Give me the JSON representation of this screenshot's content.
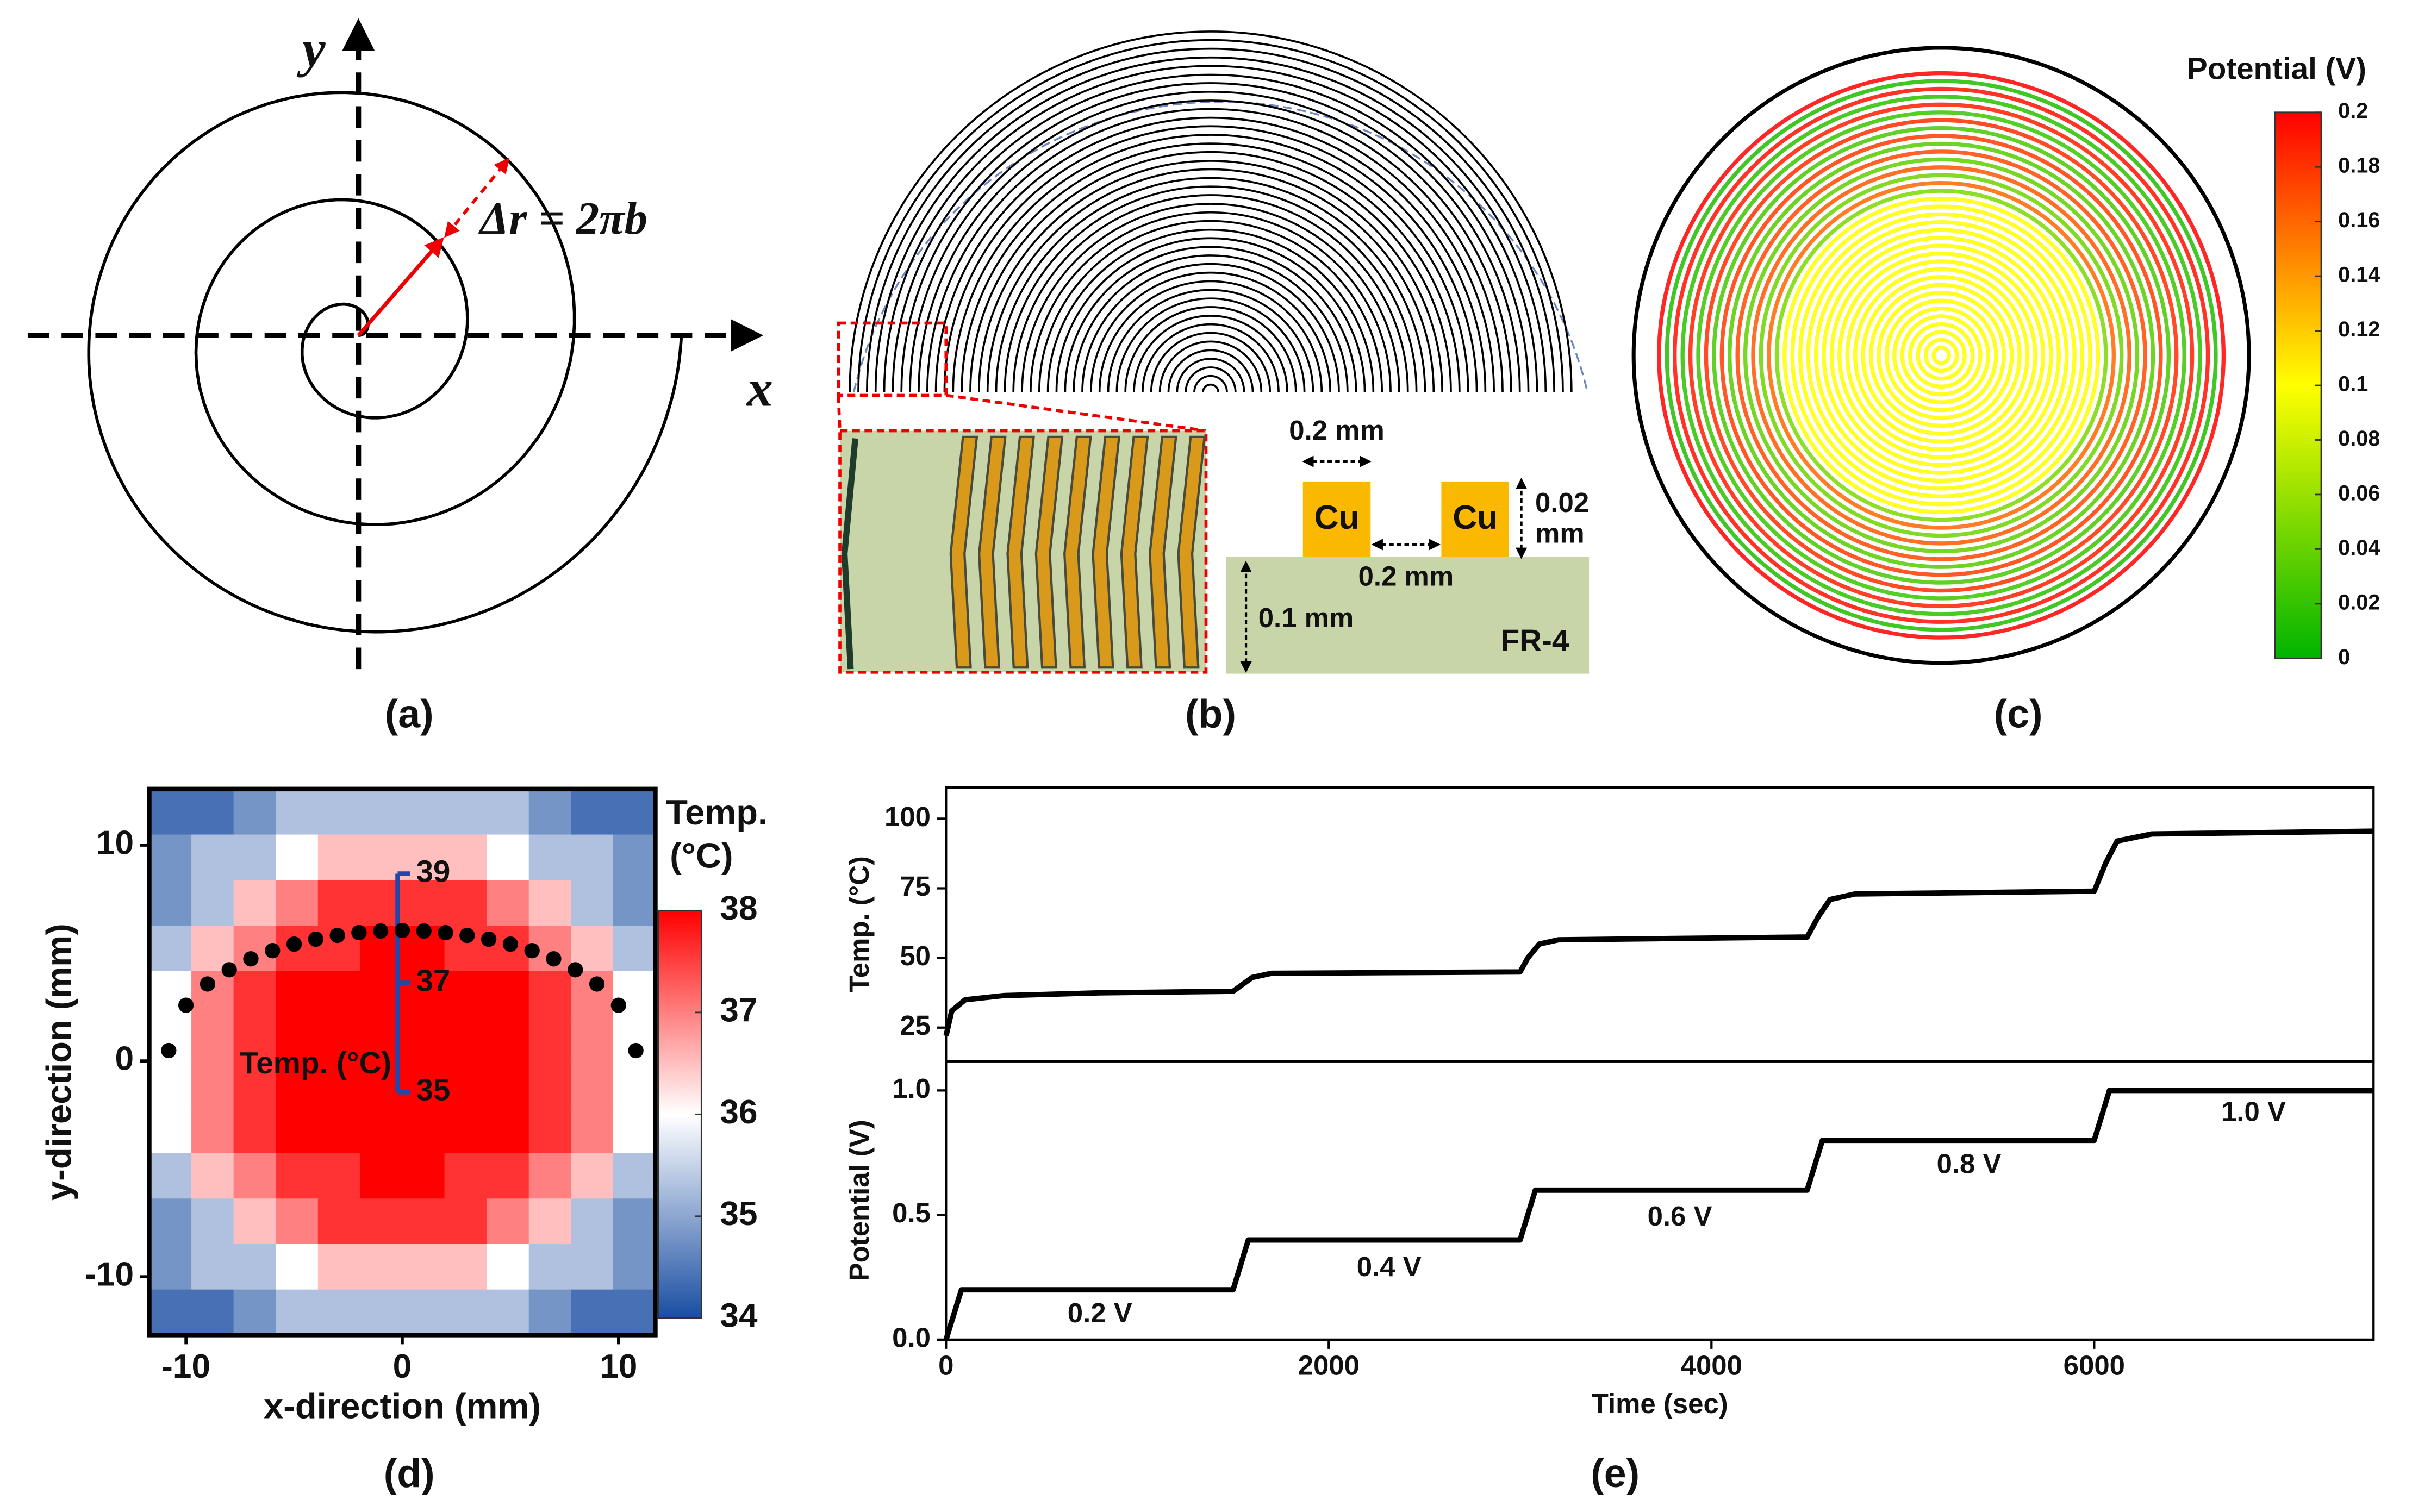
{
  "panel_labels": [
    "(a)",
    "(b)",
    "(c)",
    "(d)",
    "(e)"
  ],
  "spiral_diagram": {
    "x_label": "x",
    "y_label": "y",
    "annotation": "Δr = 2πb"
  },
  "cross_section": {
    "pitch": "0.2 mm",
    "conductor": [
      "Cu",
      "Cu"
    ],
    "height": [
      "0.02",
      "mm"
    ],
    "gap": "0.2 mm",
    "substrate_thickness": "0.1 mm",
    "substrate": "FR-4"
  },
  "potential_colorbar": {
    "title": "Potential (V)",
    "lim": [
      0,
      0.2
    ],
    "ticks": [
      0,
      0.02,
      0.04,
      0.06,
      0.08,
      0.1,
      0.12,
      0.14,
      0.16,
      0.18,
      0.2
    ],
    "colors": [
      "#00b400",
      "#ffff00",
      "#ff0000"
    ]
  },
  "chart_data": [
    {
      "type": "heatmap",
      "xlabel": "x-direction (mm)",
      "ylabel": "y-direction (mm)",
      "xlim": [
        -11.7,
        11.7
      ],
      "ylim": [
        -12.7,
        12.6
      ],
      "xticks": [
        -10,
        0,
        10
      ],
      "yticks": [
        -10,
        0,
        10
      ],
      "z": [
        [
          34.4,
          34.4,
          34.8,
          35.3,
          35.3,
          35.3,
          35.3,
          35.3,
          35.3,
          34.8,
          34.4,
          34.4
        ],
        [
          34.8,
          35.3,
          35.3,
          36,
          36.5,
          36.5,
          36.5,
          36.5,
          36,
          35.3,
          35.3,
          34.8
        ],
        [
          34.8,
          35.3,
          36.5,
          37,
          37.6,
          37.6,
          37.6,
          37.6,
          37,
          36.5,
          35.3,
          34.8
        ],
        [
          35.3,
          36.5,
          37,
          37.6,
          37.6,
          38,
          38,
          37.6,
          37.6,
          37,
          36.5,
          35.3
        ],
        [
          36,
          37,
          37.6,
          38,
          38,
          38,
          38,
          38,
          38,
          37.6,
          37,
          36
        ],
        [
          36,
          37,
          37.6,
          38,
          38,
          38,
          38,
          38,
          38,
          37.6,
          37,
          36
        ],
        [
          36,
          37,
          37.6,
          38,
          38,
          38,
          38,
          38,
          38,
          37.6,
          37,
          36
        ],
        [
          36,
          37,
          37.6,
          38,
          38,
          38,
          38,
          38,
          38,
          37.6,
          37,
          36
        ],
        [
          35.3,
          36.5,
          37,
          37.6,
          37.6,
          38,
          38,
          37.6,
          37.6,
          37,
          36.5,
          35.3
        ],
        [
          34.8,
          35.3,
          36.5,
          37,
          37.6,
          37.6,
          37.6,
          37.6,
          37,
          36.5,
          35.3,
          34.8
        ],
        [
          34.8,
          35.3,
          35.3,
          36,
          36.5,
          36.5,
          36.5,
          36.5,
          36,
          35.3,
          35.3,
          34.8
        ],
        [
          34.4,
          34.4,
          34.8,
          35.3,
          35.3,
          35.3,
          35.3,
          35.3,
          35.3,
          34.8,
          34.4,
          34.4
        ]
      ],
      "colorbar": {
        "title": [
          "Temp.",
          "(°C)"
        ],
        "lim": [
          34,
          38
        ],
        "ticks": [
          34,
          35,
          36,
          37,
          38
        ],
        "colors": [
          "#1a4ea2",
          "#ffffff",
          "#ff0000"
        ]
      },
      "y2label": "Temp. (°C)",
      "y2lim": [
        30.55,
        40.55
      ],
      "y2ticks": [
        35,
        37,
        39
      ],
      "y2color": "#2346a8",
      "series": [
        {
          "color": "#000000",
          "axis": "y2",
          "x": [
            -10.8,
            -10,
            -9,
            -8,
            -7,
            -6,
            -5,
            -4,
            -3,
            -2,
            -1,
            0,
            1,
            2,
            3,
            4,
            5,
            6,
            7,
            8,
            9,
            10,
            10.8
          ],
          "values": [
            35.76,
            36.59,
            36.98,
            37.24,
            37.44,
            37.59,
            37.71,
            37.8,
            37.87,
            37.92,
            37.95,
            37.96,
            37.95,
            37.92,
            37.87,
            37.8,
            37.71,
            37.59,
            37.44,
            37.24,
            36.98,
            36.59,
            35.76
          ]
        }
      ]
    },
    {
      "type": "line",
      "ylabel": "Temp. (°C)",
      "xlim": [
        0,
        7460
      ],
      "ylim": [
        12.9,
        111.2
      ],
      "yticks": [
        25,
        50,
        75,
        100
      ],
      "x": [
        0,
        30,
        100,
        300,
        800,
        1500,
        1540,
        1600,
        1700,
        3000,
        3040,
        3100,
        3200,
        4500,
        4560,
        4620,
        4750,
        6000,
        6060,
        6120,
        6300,
        7460
      ],
      "series": [
        {
          "color": "#000000",
          "values": [
            22,
            31,
            35,
            36.5,
            37.5,
            38,
            40,
            43,
            44.5,
            45,
            50,
            55,
            56.5,
            57.5,
            65,
            71,
            73,
            74,
            84,
            92,
            94.5,
            95.5
          ]
        }
      ]
    },
    {
      "type": "line",
      "ylabel": "Potential (V)",
      "xlabel": "Time (sec)",
      "xlim": [
        0,
        7460
      ],
      "ylim": [
        0,
        1.117
      ],
      "xticks": [
        0,
        2000,
        4000,
        6000
      ],
      "yticks": [
        {
          "value": 0,
          "label": "0.0"
        },
        0.5,
        {
          "value": 1,
          "label": "1.0"
        }
      ],
      "x": [
        0,
        80,
        1500,
        1580,
        3000,
        3080,
        4500,
        4580,
        6000,
        6080,
        7460
      ],
      "series": [
        {
          "color": "#000000",
          "values": [
            0,
            0.2,
            0.2,
            0.4,
            0.4,
            0.6,
            0.6,
            0.8,
            0.8,
            1,
            1
          ]
        }
      ],
      "annotations": [
        "0.2 V",
        "0.4 V",
        "0.6 V",
        "0.8 V",
        "1.0 V"
      ]
    }
  ]
}
